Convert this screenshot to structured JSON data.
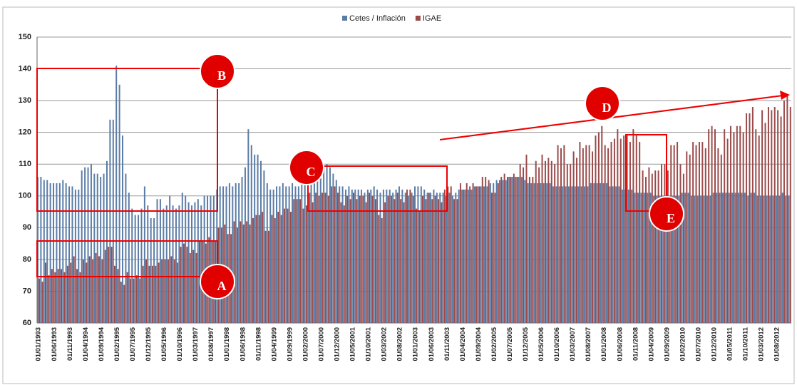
{
  "chart_data": {
    "type": "bar",
    "categories": [
      "01/01/1993",
      null,
      null,
      null,
      null,
      "01/06/1993",
      null,
      null,
      null,
      null,
      "01/11/1993",
      null,
      null,
      null,
      null,
      "01/04/1994",
      null,
      null,
      null,
      null,
      "01/09/1994",
      null,
      null,
      null,
      null,
      "01/02/1995",
      null,
      null,
      null,
      null,
      "01/07/1995",
      null,
      null,
      null,
      null,
      "01/12/1995",
      null,
      null,
      null,
      null,
      "01/05/1996",
      null,
      null,
      null,
      null,
      "01/10/1996",
      null,
      null,
      null,
      null,
      "01/03/1997",
      null,
      null,
      null,
      null,
      "01/08/1997",
      null,
      null,
      null,
      null,
      "01/01/1998",
      null,
      null,
      null,
      null,
      "01/06/1998",
      null,
      null,
      null,
      null,
      "01/11/1998",
      null,
      null,
      null,
      null,
      "01/04/1999",
      null,
      null,
      null,
      null,
      "01/09/1999",
      null,
      null,
      null,
      null,
      "01/02/2000",
      null,
      null,
      null,
      null,
      "01/07/2000",
      null,
      null,
      null,
      null,
      "01/12/2000",
      null,
      null,
      null,
      null,
      "01/05/2001",
      null,
      null,
      null,
      null,
      "01/10/2001",
      null,
      null,
      null,
      null,
      "01/03/2002",
      null,
      null,
      null,
      null,
      "01/08/2002",
      null,
      null,
      null,
      null,
      "01/01/2003",
      null,
      null,
      null,
      null,
      "01/06/2003",
      null,
      null,
      null,
      null,
      "01/11/2003",
      null,
      null,
      null,
      null,
      "01/04/2004",
      null,
      null,
      null,
      null,
      "01/09/2004",
      null,
      null,
      null,
      null,
      "01/02/2005",
      null,
      null,
      null,
      null,
      "01/07/2005",
      null,
      null,
      null,
      null,
      "01/12/2005",
      null,
      null,
      null,
      null,
      "01/05/2006",
      null,
      null,
      null,
      null,
      "01/10/2006",
      null,
      null,
      null,
      null,
      "01/03/2007",
      null,
      null,
      null,
      null,
      "01/08/2007",
      null,
      null,
      null,
      null,
      "01/01/2008",
      null,
      null,
      null,
      null,
      "01/06/2008",
      null,
      null,
      null,
      null,
      "01/11/2008",
      null,
      null,
      null,
      null,
      "01/04/2009",
      null,
      null,
      null,
      null,
      "01/09/2009",
      null,
      null,
      null,
      null,
      "01/02/2010",
      null,
      null,
      null,
      null,
      "01/07/2010",
      null,
      null,
      null,
      null,
      "01/12/2010",
      null,
      null,
      null,
      null,
      "01/05/2011",
      null,
      null,
      null,
      null,
      "01/10/2011",
      null,
      null,
      null,
      null,
      "01/03/2012",
      null,
      null,
      null,
      null,
      "01/08/2012",
      null,
      null,
      null,
      null
    ],
    "series": [
      {
        "name": "Cetes / Inflación",
        "color": "#5a7ca6",
        "values": [
          106,
          106,
          105,
          105,
          104,
          104,
          104,
          104,
          105,
          104,
          103,
          103,
          102,
          102,
          108,
          109,
          109,
          110,
          107,
          107,
          106,
          107,
          111,
          124,
          124,
          141,
          135,
          119,
          107,
          101,
          96,
          94,
          94,
          96,
          103,
          97,
          93,
          93,
          99,
          99,
          96,
          97,
          100,
          97,
          96,
          97,
          101,
          100,
          98,
          97,
          98,
          99,
          97,
          100,
          100,
          100,
          100,
          102,
          103,
          103,
          103,
          104,
          103,
          104,
          104,
          106,
          109,
          121,
          116,
          113,
          113,
          111,
          108,
          104,
          102,
          102,
          103,
          103,
          104,
          103,
          103,
          104,
          103,
          103,
          104,
          104,
          105,
          106,
          106,
          107,
          108,
          109,
          110,
          109,
          107,
          105,
          103,
          103,
          102,
          103,
          102,
          102,
          102,
          102,
          101,
          102,
          102,
          103,
          102,
          101,
          102,
          102,
          102,
          101,
          102,
          103,
          102,
          101,
          100,
          101,
          103,
          103,
          103,
          102,
          101,
          101,
          102,
          101,
          101,
          101,
          100,
          101,
          100,
          101,
          102,
          102,
          102,
          102,
          102,
          103,
          103,
          103,
          103,
          103,
          104,
          104,
          105,
          105,
          105,
          105,
          106,
          106,
          106,
          106,
          106,
          105,
          104,
          104,
          104,
          104,
          104,
          104,
          104,
          104,
          103,
          103,
          103,
          103,
          103,
          103,
          103,
          103,
          103,
          103,
          103,
          103,
          104,
          104,
          104,
          104,
          104,
          104,
          103,
          103,
          103,
          103,
          102,
          102,
          102,
          102,
          101,
          101,
          101,
          101,
          101,
          101,
          100,
          100,
          100,
          100,
          100,
          100,
          100,
          100,
          100,
          101,
          101,
          101,
          100,
          100,
          100,
          100,
          100,
          100,
          100,
          101,
          101,
          101,
          101,
          101,
          101,
          101,
          101,
          101,
          101,
          101,
          100,
          101,
          101,
          100,
          100,
          100,
          100,
          100,
          100,
          100,
          100,
          101,
          100,
          100
        ]
      },
      {
        "name": "IGAE",
        "color": "#9b4a4a",
        "values": [
          74,
          73,
          79,
          75,
          77,
          76,
          77,
          77,
          76,
          78,
          79,
          81,
          77,
          76,
          80,
          79,
          81,
          80,
          82,
          81,
          80,
          83,
          84,
          84,
          78,
          77,
          73,
          72,
          76,
          74,
          74,
          75,
          74,
          78,
          80,
          78,
          78,
          78,
          79,
          80,
          80,
          80,
          81,
          80,
          79,
          84,
          85,
          84,
          82,
          83,
          82,
          86,
          86,
          85,
          87,
          86,
          86,
          90,
          90,
          91,
          88,
          88,
          92,
          90,
          92,
          91,
          92,
          91,
          93,
          94,
          94,
          95,
          89,
          89,
          94,
          93,
          95,
          94,
          96,
          96,
          95,
          99,
          99,
          99,
          96,
          97,
          101,
          98,
          101,
          100,
          101,
          101,
          100,
          103,
          103,
          101,
          98,
          97,
          100,
          99,
          101,
          99,
          100,
          100,
          98,
          101,
          100,
          99,
          94,
          93,
          98,
          100,
          100,
          99,
          101,
          99,
          98,
          102,
          102,
          100,
          96,
          95,
          100,
          99,
          101,
          99,
          100,
          99,
          98,
          102,
          103,
          103,
          99,
          99,
          104,
          102,
          104,
          103,
          104,
          103,
          103,
          106,
          106,
          105,
          101,
          101,
          104,
          106,
          107,
          106,
          106,
          107,
          106,
          110,
          109,
          113,
          106,
          106,
          111,
          109,
          113,
          111,
          112,
          111,
          110,
          116,
          115,
          116,
          110,
          110,
          114,
          112,
          117,
          115,
          116,
          116,
          114,
          119,
          120,
          122,
          116,
          115,
          117,
          118,
          121,
          118,
          119,
          119,
          117,
          121,
          119,
          117,
          108,
          106,
          109,
          107,
          108,
          108,
          110,
          110,
          108,
          116,
          116,
          117,
          110,
          107,
          114,
          113,
          117,
          116,
          117,
          117,
          115,
          121,
          122,
          121,
          115,
          113,
          121,
          118,
          122,
          120,
          122,
          122,
          120,
          126,
          126,
          128,
          121,
          119,
          127,
          123,
          128,
          127,
          128,
          127,
          125,
          130,
          132,
          128
        ]
      }
    ],
    "ylim": [
      60,
      150
    ],
    "yticks": [
      60,
      70,
      80,
      90,
      100,
      110,
      120,
      130,
      140,
      150
    ],
    "grid": true,
    "legend": "top",
    "annotations": [
      "A",
      "B",
      "C",
      "D",
      "E"
    ]
  }
}
